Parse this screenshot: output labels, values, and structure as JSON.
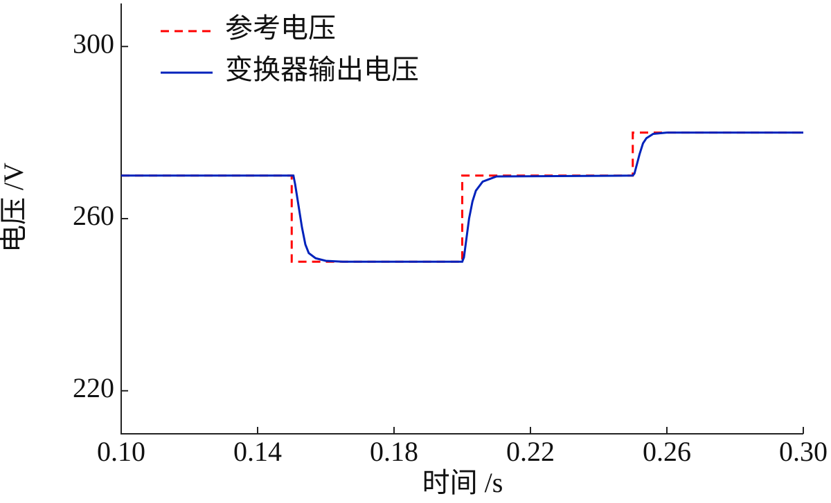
{
  "chart_data": {
    "type": "line",
    "xlabel": "时间 /s",
    "ylabel": "电压 /V",
    "xlim": [
      0.1,
      0.3
    ],
    "xticks": [
      {
        "value": 0.1,
        "label": "0.10"
      },
      {
        "value": 0.14,
        "label": "0.14"
      },
      {
        "value": 0.18,
        "label": "0.18"
      },
      {
        "value": 0.22,
        "label": "0.22"
      },
      {
        "value": 0.26,
        "label": "0.26"
      },
      {
        "value": 0.3,
        "label": "0.30"
      }
    ],
    "ylim": [
      210,
      310
    ],
    "yticks": [
      220,
      260,
      300
    ],
    "legend": "upper left",
    "series": [
      {
        "name": "参考电压",
        "color": "#ff0000",
        "linestyle": "dashed",
        "x": [
          0.1,
          0.15,
          0.15,
          0.2,
          0.2,
          0.25,
          0.25,
          0.3
        ],
        "values": [
          270,
          270,
          250,
          250,
          270,
          270,
          280,
          280
        ]
      },
      {
        "name": "变换器输出电压",
        "color": "#0022bb",
        "linestyle": "solid",
        "x": [
          0.1,
          0.1505,
          0.151,
          0.152,
          0.153,
          0.154,
          0.155,
          0.157,
          0.16,
          0.165,
          0.2,
          0.2005,
          0.201,
          0.202,
          0.203,
          0.204,
          0.206,
          0.21,
          0.25,
          0.2505,
          0.251,
          0.252,
          0.253,
          0.254,
          0.256,
          0.26,
          0.3
        ],
        "values": [
          270,
          270,
          268,
          263,
          258,
          254,
          252,
          250.8,
          250.2,
          250,
          250,
          251,
          254,
          260,
          264,
          266.5,
          268.6,
          269.8,
          270,
          270.5,
          272,
          275,
          277.5,
          278.7,
          279.7,
          280,
          280
        ]
      }
    ]
  }
}
